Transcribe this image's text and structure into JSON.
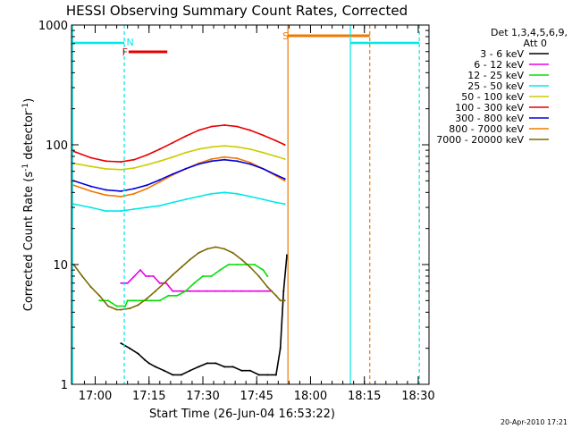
{
  "chart_data": {
    "type": "line",
    "title": "HESSI Observing Summary Count Rates, Corrected",
    "xlabel": "Start Time (26-Jun-04 16:53:22)",
    "ylabel_main": "Corrected Count Rate (s",
    "ylabel_sup1": "-1",
    "ylabel_mid": " detector",
    "ylabel_sup2": "-1",
    "ylabel_end": ")",
    "y_scale": "log",
    "ylim": [
      1,
      1000
    ],
    "y_ticks": [
      {
        "value": 1,
        "label": "1"
      },
      {
        "value": 10,
        "label": "10"
      },
      {
        "value": 100,
        "label": "100"
      },
      {
        "value": 1000,
        "label": "1000"
      }
    ],
    "xlim": [
      16.89,
      18.55
    ],
    "x_ticks": [
      {
        "value": 17.0,
        "label": "17:00"
      },
      {
        "value": 17.25,
        "label": "17:15"
      },
      {
        "value": 17.5,
        "label": "17:30"
      },
      {
        "value": 17.75,
        "label": "17:45"
      },
      {
        "value": 18.0,
        "label": "18:00"
      },
      {
        "value": 18.25,
        "label": "18:15"
      },
      {
        "value": 18.5,
        "label": "18:30"
      }
    ],
    "legend": {
      "header_line1": "Det 1,3,4,5,6,9,",
      "header_line2": "Att 0",
      "position": "top-right"
    },
    "series": [
      {
        "name": "3 - 6 keV",
        "color": "#000000",
        "x": [
          17.12,
          17.16,
          17.2,
          17.23,
          17.25,
          17.28,
          17.32,
          17.36,
          17.4,
          17.44,
          17.48,
          17.52,
          17.56,
          17.6,
          17.64,
          17.68,
          17.72,
          17.76,
          17.8,
          17.84,
          17.86,
          17.875,
          17.89
        ],
        "y": [
          2.2,
          2.0,
          1.8,
          1.6,
          1.5,
          1.4,
          1.3,
          1.2,
          1.2,
          1.3,
          1.4,
          1.5,
          1.5,
          1.4,
          1.4,
          1.3,
          1.3,
          1.2,
          1.2,
          1.2,
          2.0,
          6.0,
          12.0
        ]
      },
      {
        "name": "6 - 12 keV",
        "color": "#e800e8",
        "x": [
          17.12,
          17.15,
          17.21,
          17.235,
          17.25,
          17.27,
          17.3,
          17.33,
          17.36,
          17.4,
          17.44,
          17.48,
          17.52,
          17.56,
          17.6,
          17.64,
          17.68,
          17.72,
          17.76,
          17.8,
          17.82
        ],
        "y": [
          7,
          7,
          9,
          8,
          8,
          8,
          7,
          7,
          6,
          6,
          6,
          6,
          6,
          6,
          6,
          6,
          6,
          6,
          6,
          6,
          6
        ]
      },
      {
        "name": "12 - 25 keV",
        "color": "#00e000",
        "x": [
          17.02,
          17.06,
          17.1,
          17.14,
          17.15,
          17.18,
          17.22,
          17.26,
          17.3,
          17.34,
          17.38,
          17.42,
          17.46,
          17.5,
          17.54,
          17.58,
          17.62,
          17.66,
          17.7,
          17.74,
          17.78,
          17.8
        ],
        "y": [
          5,
          5,
          4.5,
          4.5,
          5,
          5,
          5,
          5,
          5,
          5.5,
          5.5,
          6,
          7,
          8,
          8,
          9,
          10,
          10,
          10,
          10,
          9,
          8
        ]
      },
      {
        "name": "25 - 50 keV",
        "color": "#00e8e8",
        "x": [
          16.9,
          16.98,
          17.05,
          17.12,
          17.18,
          17.24,
          17.3,
          17.36,
          17.42,
          17.48,
          17.54,
          17.6,
          17.66,
          17.72,
          17.78,
          17.84,
          17.88
        ],
        "y": [
          32,
          30,
          28,
          28,
          29,
          30,
          31,
          33,
          35,
          37,
          39,
          40,
          39,
          37,
          35,
          33,
          32
        ]
      },
      {
        "name": "50 - 100 keV",
        "color": "#cccc00",
        "x": [
          16.9,
          16.98,
          17.05,
          17.12,
          17.18,
          17.24,
          17.3,
          17.36,
          17.42,
          17.48,
          17.54,
          17.6,
          17.66,
          17.72,
          17.78,
          17.84,
          17.88
        ],
        "y": [
          70,
          66,
          63,
          62,
          64,
          68,
          73,
          79,
          86,
          92,
          96,
          98,
          96,
          92,
          86,
          80,
          76
        ]
      },
      {
        "name": "100 - 300 keV",
        "color": "#e80000",
        "x": [
          16.9,
          16.98,
          17.05,
          17.12,
          17.18,
          17.24,
          17.3,
          17.36,
          17.42,
          17.48,
          17.54,
          17.6,
          17.66,
          17.72,
          17.78,
          17.84,
          17.88
        ],
        "y": [
          88,
          78,
          73,
          72,
          75,
          82,
          92,
          104,
          118,
          132,
          142,
          146,
          142,
          132,
          120,
          108,
          100
        ]
      },
      {
        "name": "300 - 800 keV",
        "color": "#0000e0",
        "x": [
          16.9,
          16.98,
          17.05,
          17.12,
          17.18,
          17.24,
          17.3,
          17.36,
          17.42,
          17.48,
          17.54,
          17.6,
          17.66,
          17.72,
          17.78,
          17.84,
          17.88
        ],
        "y": [
          50,
          45,
          42,
          41,
          43,
          46,
          51,
          57,
          63,
          69,
          73,
          75,
          73,
          69,
          63,
          56,
          52
        ]
      },
      {
        "name": "800 - 7000 keV",
        "color": "#f07800",
        "x": [
          16.9,
          16.98,
          17.05,
          17.12,
          17.18,
          17.24,
          17.3,
          17.36,
          17.42,
          17.48,
          17.54,
          17.6,
          17.66,
          17.72,
          17.78,
          17.84,
          17.88
        ],
        "y": [
          46,
          41,
          38,
          37,
          39,
          43,
          49,
          56,
          63,
          70,
          76,
          79,
          77,
          71,
          63,
          55,
          50
        ]
      },
      {
        "name": "7000 - 20000 keV",
        "color": "#7a6a00",
        "x": [
          16.9,
          16.94,
          16.98,
          17.02,
          17.06,
          17.1,
          17.12,
          17.16,
          17.2,
          17.24,
          17.28,
          17.32,
          17.36,
          17.4,
          17.44,
          17.48,
          17.52,
          17.56,
          17.6,
          17.64,
          17.68,
          17.72,
          17.76,
          17.8,
          17.84,
          17.86,
          17.88
        ],
        "y": [
          10,
          8,
          6.5,
          5.5,
          4.5,
          4.2,
          4.2,
          4.3,
          4.6,
          5.2,
          6.0,
          7.0,
          8.2,
          9.5,
          11,
          12.5,
          13.5,
          14,
          13.5,
          12.5,
          11,
          9.5,
          8,
          6.5,
          5.5,
          5,
          5
        ]
      }
    ],
    "annotations": [
      {
        "label": "N",
        "color": "#00e8e8"
      },
      {
        "label": "F",
        "color": "#e80000"
      },
      {
        "label": "S",
        "color": "#f07800"
      }
    ]
  },
  "timestamp": "20-Apr-2010 17:21"
}
